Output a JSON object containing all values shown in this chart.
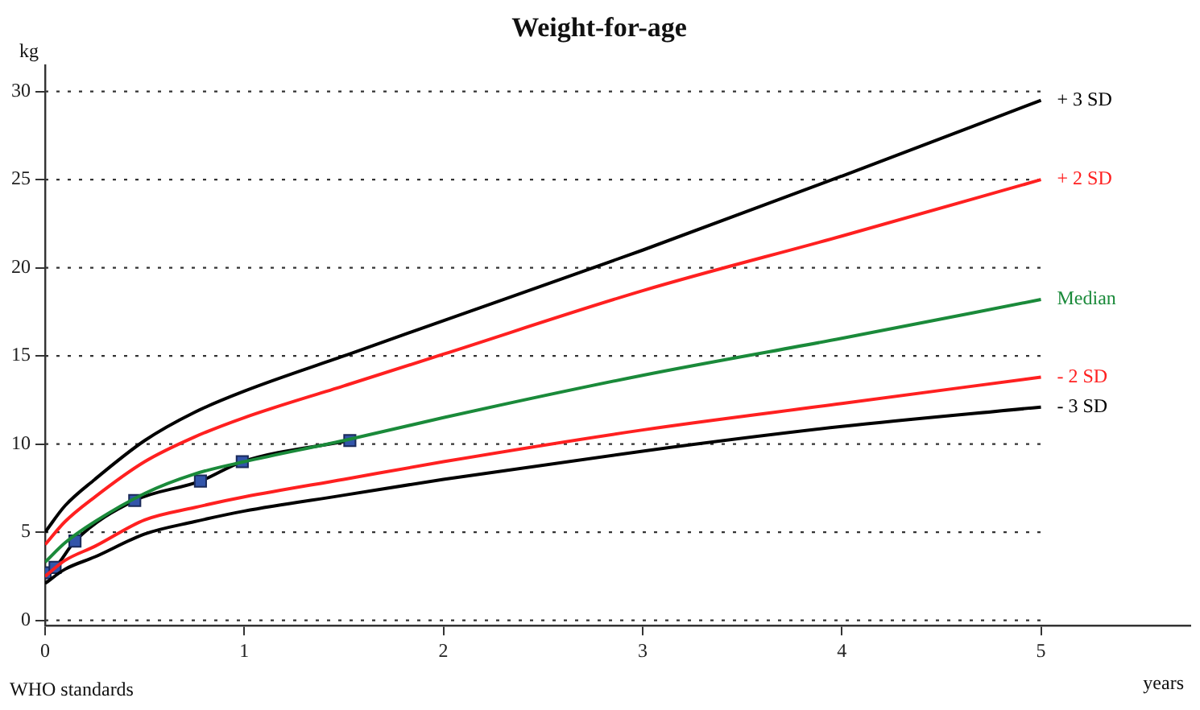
{
  "chart_data": {
    "type": "line",
    "title": "Weight-for-age",
    "xlabel": "years",
    "ylabel": "kg",
    "annotations": [
      "WHO standards"
    ],
    "xlim": [
      0,
      5.75
    ],
    "xticks": [
      0,
      1,
      2,
      3,
      4,
      5
    ],
    "ylim": [
      -0.3,
      31.5
    ],
    "yticks": [
      0,
      5,
      10,
      15,
      20,
      25,
      30
    ],
    "grid": "y",
    "legend": false,
    "marker": "none",
    "series": [
      {
        "name": "+ 3 SD",
        "color": "#000000",
        "x": [
          0,
          0.1,
          0.25,
          0.5,
          0.75,
          1,
          1.5,
          2,
          3,
          4,
          5
        ],
        "values": [
          5.0,
          6.5,
          8.0,
          10.2,
          11.8,
          13.0,
          15.0,
          17.0,
          21.0,
          25.2,
          29.5
        ]
      },
      {
        "name": "+ 2 SD",
        "color": "#ff2020",
        "x": [
          0,
          0.1,
          0.25,
          0.5,
          0.75,
          1,
          1.5,
          2,
          3,
          4,
          5
        ],
        "values": [
          4.3,
          5.6,
          7.0,
          9.0,
          10.4,
          11.5,
          13.3,
          15.1,
          18.7,
          21.8,
          25.0
        ]
      },
      {
        "name": "Median",
        "color": "#1a8a3a",
        "x": [
          0,
          0.1,
          0.25,
          0.5,
          0.75,
          1,
          1.5,
          2,
          3,
          4,
          5
        ],
        "values": [
          3.3,
          4.4,
          5.6,
          7.2,
          8.3,
          9.0,
          10.2,
          11.5,
          13.9,
          16.0,
          18.2
        ]
      },
      {
        "name": "- 2 SD",
        "color": "#ff2020",
        "x": [
          0,
          0.1,
          0.25,
          0.5,
          0.75,
          1,
          1.5,
          2,
          3,
          4,
          5
        ],
        "values": [
          2.5,
          3.4,
          4.2,
          5.7,
          6.4,
          7.0,
          8.0,
          9.0,
          10.8,
          12.3,
          13.8
        ]
      },
      {
        "name": "- 3 SD",
        "color": "#000000",
        "x": [
          0,
          0.1,
          0.25,
          0.5,
          0.75,
          1,
          1.5,
          2,
          3,
          4,
          5
        ],
        "values": [
          2.1,
          2.9,
          3.6,
          4.9,
          5.6,
          6.2,
          7.1,
          8.0,
          9.6,
          11.0,
          12.1
        ]
      },
      {
        "color": "#000000",
        "marker": "square",
        "x": [
          0,
          0.05,
          0.15,
          0.45,
          0.78,
          0.99,
          1.53
        ],
        "values": [
          2.7,
          3.0,
          4.5,
          6.8,
          7.9,
          9.0,
          10.2
        ]
      }
    ]
  }
}
